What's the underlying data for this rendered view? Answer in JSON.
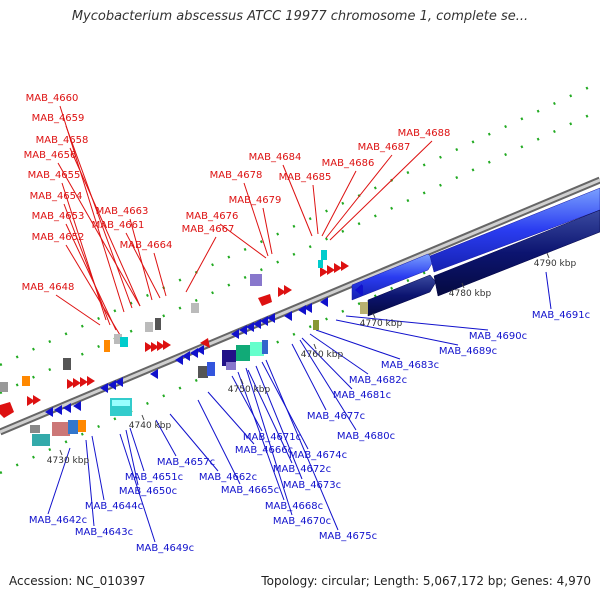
{
  "title": "Mycobacterium abscessus ATCC 19977 chromosome 1, complete se...",
  "footer": {
    "accession": "Accession: NC_010397",
    "summary": "Topology: circular; Length: 5,067,172 bp; Genes: 4,970"
  },
  "colors": {
    "forward": "#dd1111",
    "reverse": "#1111cc",
    "backbone": "#888888"
  },
  "kbp_ticks": [
    "4730 kbp",
    "4740 kbp",
    "4750 kbp",
    "4760 kbp",
    "4770 kbp",
    "4780 kbp",
    "4790 kbp"
  ],
  "forward_genes": [
    "MAB_4660",
    "MAB_4659",
    "MAB_4658",
    "MAB_4656",
    "MAB_4655",
    "MAB_4654",
    "MAB_4653",
    "MAB_4652",
    "MAB_4648",
    "MAB_4663",
    "MAB_4661",
    "MAB_4664",
    "MAB_4667",
    "MAB_4676",
    "MAB_4678",
    "MAB_4679",
    "MAB_4684",
    "MAB_4685",
    "MAB_4686",
    "MAB_4687",
    "MAB_4688"
  ],
  "reverse_genes": [
    "MAB_4642c",
    "MAB_4643c",
    "MAB_4644c",
    "MAB_4649c",
    "MAB_4650c",
    "MAB_4651c",
    "MAB_4657c",
    "MAB_4662c",
    "MAB_4665c",
    "MAB_4666c",
    "MAB_4668c",
    "MAB_4670c",
    "MAB_4671c",
    "MAB_4672c",
    "MAB_4673c",
    "MAB_4674c",
    "MAB_4675c",
    "MAB_4677c",
    "MAB_4680c",
    "MAB_4681c",
    "MAB_4682c",
    "MAB_4683c",
    "MAB_4689c",
    "MAB_4690c",
    "MAB_4691c"
  ]
}
